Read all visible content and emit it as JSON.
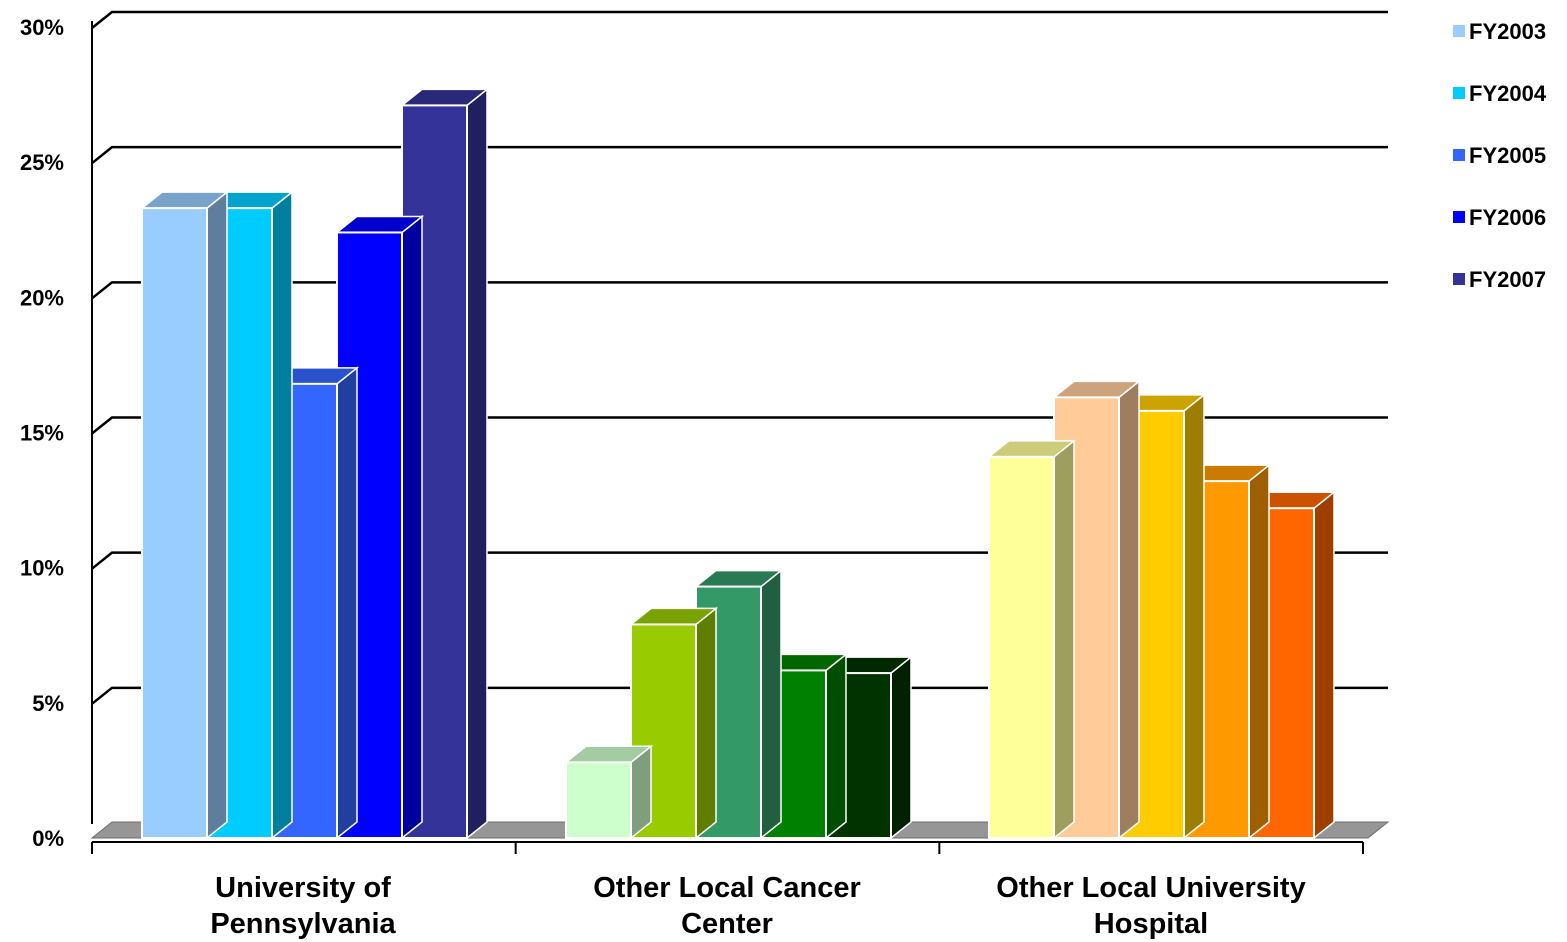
{
  "chart_data": {
    "type": "bar",
    "title": "",
    "xlabel": "",
    "ylabel": "",
    "ylim": [
      0,
      30
    ],
    "yticks": [
      "0%",
      "5%",
      "10%",
      "15%",
      "20%",
      "25%",
      "30%"
    ],
    "grid": true,
    "legend_position": "top-right",
    "categories": [
      [
        "University of",
        "Pennsylvania"
      ],
      [
        "Other Local Cancer",
        "Center"
      ],
      [
        "Other Local University",
        "Hospital"
      ]
    ],
    "series": [
      {
        "name": "FY2003",
        "values": [
          23.3,
          2.8,
          14.1
        ]
      },
      {
        "name": "FY2004",
        "values": [
          23.3,
          7.9,
          16.3
        ]
      },
      {
        "name": "FY2005",
        "values": [
          16.8,
          9.3,
          15.8
        ]
      },
      {
        "name": "FY2006",
        "values": [
          22.4,
          6.2,
          13.2
        ]
      },
      {
        "name": "FY2007",
        "values": [
          27.1,
          6.1,
          12.2
        ]
      }
    ],
    "bar_colors": [
      [
        "#99CCFF",
        "#00CCFF",
        "#3366FF",
        "#0000FF",
        "#333399"
      ],
      [
        "#CCFFCC",
        "#99CC00",
        "#339966",
        "#008000",
        "#003300"
      ],
      [
        "#FFFF99",
        "#FFCC99",
        "#FFCC00",
        "#FF9900",
        "#FF6600"
      ]
    ],
    "legend_colors": [
      "#99CCFF",
      "#00CCFF",
      "#3366FF",
      "#0000FF",
      "#333399"
    ]
  }
}
